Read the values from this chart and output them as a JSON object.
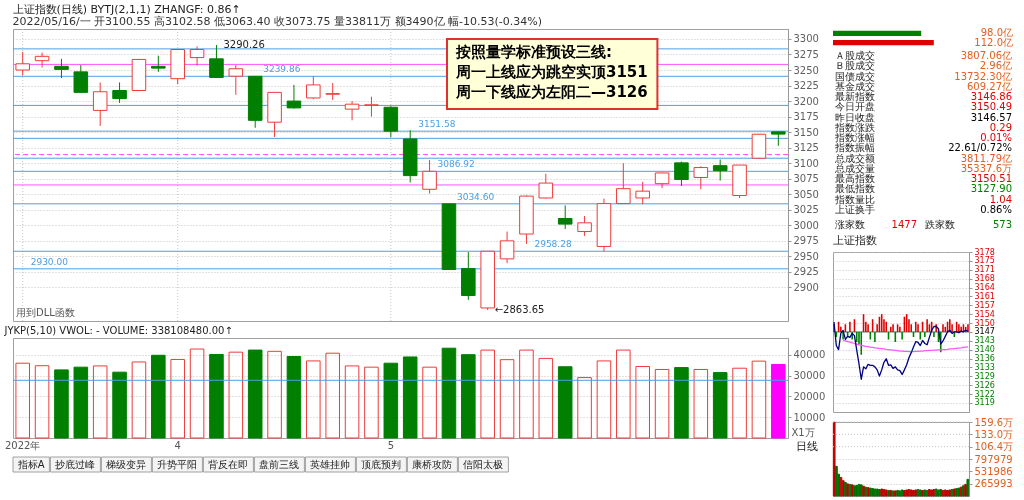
{
  "chart_data": [
    {
      "type": "candlestick",
      "title": "上证指数(日线) BYTJ(2,1,1) ZHANGF: 0.86↑",
      "subtitle": "2022/05/16/一 开3100.55 高3102.58 低3063.40 收3073.75 量33811万 额3490亿 幅-10.53(-0.34%)",
      "categories": [
        null,
        null,
        null,
        null,
        null,
        null,
        null,
        null,
        null,
        null,
        null,
        null,
        null,
        null,
        null,
        null,
        null,
        null,
        null,
        null,
        null,
        null,
        null,
        null,
        null,
        null,
        null,
        null,
        null,
        null,
        null,
        null,
        null,
        null,
        null,
        null,
        null,
        null,
        null,
        null
      ],
      "ohlc": [
        [
          3250,
          3279,
          3241,
          3260
        ],
        [
          3265,
          3278,
          3254,
          3272
        ],
        [
          3256,
          3268,
          3237,
          3251
        ],
        [
          3247,
          3258,
          3213,
          3214
        ],
        [
          3185,
          3230,
          3160,
          3215
        ],
        [
          3217,
          3230,
          3197,
          3204
        ],
        [
          3217,
          3268,
          3217,
          3267
        ],
        [
          3256,
          3273,
          3247,
          3253
        ],
        [
          3236,
          3284,
          3227,
          3283
        ],
        [
          3270,
          3288,
          3257,
          3283
        ],
        [
          3268,
          3290.26,
          3237,
          3238
        ],
        [
          3240,
          3258,
          3210,
          3252
        ],
        [
          3239.86,
          3240,
          3157,
          3169
        ],
        [
          3166,
          3214,
          3142,
          3214
        ],
        [
          3200,
          3226,
          3188,
          3189
        ],
        [
          3205,
          3240,
          3203,
          3226
        ],
        [
          3211,
          3229,
          3202,
          3212
        ],
        [
          3187,
          3200,
          3169,
          3195
        ],
        [
          3193,
          3207,
          3175,
          3194
        ],
        [
          3190,
          3192,
          3142,
          3151.58
        ],
        [
          3139,
          3153,
          3069,
          3080
        ],
        [
          3058,
          3105,
          3051,
          3086.92
        ],
        [
          3034.6,
          3035,
          2929,
          2929
        ],
        [
          2930.4,
          2957,
          2880,
          2887
        ],
        [
          2867,
          2958.28,
          2863.65,
          2958.28
        ],
        [
          2946,
          2990,
          2939,
          2975
        ],
        [
          2986,
          3048,
          2970,
          3047
        ],
        [
          3044,
          3083,
          3043,
          3068
        ],
        [
          3011,
          3032,
          2994,
          3002
        ],
        [
          2990,
          3015,
          2983,
          3004
        ],
        [
          2966,
          3043,
          2958,
          3035
        ],
        [
          3035,
          3100,
          3035,
          3059
        ],
        [
          3044,
          3070,
          3034,
          3055
        ],
        [
          3067,
          3085,
          3060,
          3084.28
        ],
        [
          3100.55,
          3102.58,
          3063.4,
          3073.75
        ],
        [
          3077,
          3095,
          3058,
          3093
        ],
        [
          3096,
          3106,
          3072,
          3088
        ],
        [
          3048,
          3097,
          3044,
          3097
        ],
        [
          3108,
          3147,
          3108,
          3146.57
        ],
        [
          3150.49,
          3150.51,
          3127.9,
          3146.86
        ]
      ],
      "colors": [
        "#ee3b3b",
        "#ee3b3b",
        "#007f00",
        "#007f00",
        "#ee3b3b",
        "#007f00",
        "#ee3b3b",
        "#007f00",
        "#ee3b3b",
        "#ee3b3b",
        "#007f00",
        "#ee3b3b",
        "#007f00",
        "#ee3b3b",
        "#007f00",
        "#ee3b3b",
        "#ee3b3b",
        "#ee3b3b",
        "#ee3b3b",
        "#007f00",
        "#007f00",
        "#ee3b3b",
        "#007f00",
        "#007f00",
        "#ee3b3b",
        "#ee3b3b",
        "#ee3b3b",
        "#ee3b3b",
        "#007f00",
        "#ee3b3b",
        "#ee3b3b",
        "#ee3b3b",
        "#ee3b3b",
        "#ee3b3b",
        "#007f00",
        "#ee3b3b",
        "#007f00",
        "#ee3b3b",
        "#ee3b3b",
        "#007f00"
      ],
      "ylim": [
        2846,
        3316
      ],
      "yticks": [
        2900,
        2925,
        2950,
        2975,
        3000,
        3025,
        3050,
        3075,
        3100,
        3125,
        3150,
        3175,
        3200,
        3225,
        3250,
        3275,
        3300
      ],
      "grid": true,
      "tick_labels": "y",
      "ref_lines": [
        {
          "axis": "y",
          "value": 3284,
          "color": "#4aa0e6"
        },
        {
          "axis": "y",
          "value": 3259,
          "color": "#ff55ff"
        },
        {
          "axis": "y",
          "value": 3239.86,
          "label": "3239.86",
          "color": "#4aa0e6"
        },
        {
          "axis": "y",
          "value": 3193,
          "color": "#4aa0e6"
        },
        {
          "axis": "y",
          "value": 3151.58,
          "label": "3151.58",
          "color": "#4aa0e6"
        },
        {
          "axis": "y",
          "value": 3140,
          "color": "#4aa0e6"
        },
        {
          "axis": "y",
          "value": 3114,
          "color": "#ff55ff",
          "line_style": "dashed"
        },
        {
          "axis": "y",
          "value": 3108,
          "color": "#4aa0e6"
        },
        {
          "axis": "y",
          "value": 3086.92,
          "label": "3086.92",
          "color": "#4aa0e6"
        },
        {
          "axis": "y",
          "value": 3065,
          "color": "#ff55ff"
        },
        {
          "axis": "y",
          "value": 3034.6,
          "label": "3034.60",
          "color": "#4aa0e6"
        },
        {
          "axis": "y",
          "value": 2958.28,
          "label": "2958.28",
          "color": "#4aa0e6"
        },
        {
          "axis": "y",
          "value": 2930.0,
          "label": "2930.00",
          "color": "#4aa0e6"
        }
      ],
      "annotations": [
        "按照量学标准预设三线:\n周一上线应为跳空实顶3151\n周一下线应为左阳二—3126",
        "用到DLL函数",
        {
          "text": "3290.26",
          "y": 3290.26
        },
        "←2863.65"
      ]
    },
    {
      "type": "bar",
      "title": "JYKP(5,10) VWOL: - VOLUME: 338108480.00↑",
      "categories": [
        "2022年",
        null,
        null,
        null,
        null,
        null,
        null,
        null,
        "4",
        null,
        null,
        null,
        null,
        null,
        null,
        null,
        null,
        null,
        null,
        "5",
        null,
        null,
        null,
        null,
        null,
        null,
        null,
        null,
        null,
        null,
        null,
        null,
        null,
        null,
        null,
        null,
        null,
        null,
        null,
        null
      ],
      "values": [
        35900,
        34700,
        32700,
        34000,
        34600,
        31600,
        36500,
        39700,
        37700,
        42700,
        40100,
        41200,
        42200,
        41600,
        39100,
        37000,
        40700,
        34600,
        34000,
        35900,
        38900,
        34000,
        43100,
        40000,
        42200,
        37600,
        42200,
        38200,
        34200,
        29000,
        37000,
        42200,
        34300,
        32900,
        33800,
        32900,
        31400,
        33500,
        36900,
        35300
      ],
      "colors": [
        "#ee3b3b",
        "#ee3b3b",
        "#007f00",
        "#007f00",
        "#ee3b3b",
        "#007f00",
        "#ee3b3b",
        "#007f00",
        "#ee3b3b",
        "#ee3b3b",
        "#007f00",
        "#ee3b3b",
        "#007f00",
        "#ee3b3b",
        "#007f00",
        "#ee3b3b",
        "#ee3b3b",
        "#ee3b3b",
        "#ee3b3b",
        "#007f00",
        "#007f00",
        "#ee3b3b",
        "#007f00",
        "#007f00",
        "#ee3b3b",
        "#ee3b3b",
        "#ee3b3b",
        "#ee3b3b",
        "#007f00",
        "#ee3b3b",
        "#ee3b3b",
        "#ee3b3b",
        "#ee3b3b",
        "#ee3b3b",
        "#007f00",
        "#ee3b3b",
        "#007f00",
        "#ee3b3b",
        "#ee3b3b",
        "#ff00ff"
      ],
      "ylim": [
        0,
        48000
      ],
      "yticks": [
        10000,
        20000,
        30000,
        40000
      ],
      "ylabel": "X1万",
      "grid": "y",
      "ref_lines": [
        {
          "axis": "y",
          "value": 27700,
          "color": "#4aa0e6"
        }
      ],
      "annotations": [
        "日线"
      ]
    },
    {
      "type": "other",
      "annotations": [
        "指标A",
        "抄底过峰",
        "梯级变异",
        "升势平阳",
        "背反在即",
        "盘前三线",
        "英雄挂帅",
        "顶底预判",
        "康桥攻防",
        "信阳太极"
      ]
    },
    {
      "type": "bar",
      "orientation": "horizontal",
      "categories": [
        null,
        null
      ],
      "values": [
        98.0,
        112.0
      ],
      "colors": [
        "#008000",
        "#e00000"
      ],
      "value_labels": [
        "98.0亿",
        "112.0亿"
      ]
    },
    {
      "type": "other",
      "categories": [
        "Ａ股成交",
        "Ｂ股成交",
        "国债成交",
        "基金成交",
        "最新指数",
        "今日开盘",
        "昨日收盘",
        "指数涨跌",
        "指数涨幅",
        "指数振幅",
        "总成交额",
        "总成交量",
        "最高指数",
        "最低指数",
        "指数量比",
        "上证换手"
      ],
      "value_labels": [
        "3807.06亿",
        "2.96亿",
        "13732.30亿",
        "609.27亿",
        "3146.86",
        "3150.49",
        "3146.57",
        "0.29",
        "0.01%",
        "22.61/0.72%",
        "3811.79亿",
        "35337.6万",
        "3150.51",
        "3127.90",
        "1.04",
        "0.86%"
      ],
      "colors": [
        "#e06020",
        "#e06020",
        "#e06020",
        "#e06020",
        "#e00000",
        "#e00000",
        "#000000",
        "#e00000",
        "#e00000",
        "#000000",
        "#e06020",
        "#e06020",
        "#e00000",
        "#008000",
        "#e00000",
        "#000000"
      ]
    },
    {
      "type": "other",
      "categories": [
        "涨家数",
        "跌家数"
      ],
      "value_labels": [
        "1477",
        "573"
      ],
      "colors": [
        "#e00000",
        "#008000"
      ]
    },
    {
      "type": "line",
      "title": "上证指数",
      "categories": [
        null,
        null,
        null,
        null,
        null,
        null,
        null,
        null,
        null,
        null,
        null,
        null,
        null,
        null,
        null,
        null,
        null,
        null,
        null,
        null,
        null,
        null,
        null,
        null,
        null,
        null,
        null,
        null,
        null,
        null,
        null,
        null,
        null,
        null,
        null,
        null,
        null,
        null,
        null,
        null,
        null,
        null,
        null,
        null,
        null,
        null,
        null,
        null,
        null,
        null,
        null,
        null,
        null,
        null,
        null,
        null,
        null,
        null,
        null,
        null
      ],
      "series": [
        {
          "type": "bar",
          "base": [
            3146.57,
            3146.57,
            3146.57,
            3146.57,
            3146.57,
            3146.57,
            3146.57,
            3146.57,
            3146.57,
            3146.57,
            3146.57,
            3146.57,
            3146.57,
            3146.57,
            3146.57,
            3146.57,
            3146.57,
            3146.57,
            3146.57,
            3146.57,
            3146.57,
            3146.57,
            3146.57,
            3146.57,
            3146.57,
            3146.57,
            3146.57,
            3146.57,
            3146.57,
            3146.57,
            3146.57,
            3146.57,
            3146.57,
            3146.57,
            3146.57,
            3146.57,
            3146.57,
            3146.57,
            3146.57,
            3146.57,
            3146.57,
            3146.57,
            3146.57,
            3146.57,
            3146.57,
            3146.57,
            3146.57,
            3146.57,
            3146.57,
            3146.57,
            3146.57,
            3146.57,
            3146.57,
            3146.57,
            3146.57,
            3146.57,
            3146.57,
            3146.57,
            3146.57,
            3146.57
          ],
          "values": [
            3,
            -2,
            4,
            2,
            -3,
            3,
            -2,
            4,
            -3,
            5,
            -4,
            -5,
            -9,
            7,
            4,
            3,
            -3,
            5,
            -4,
            3,
            6,
            7,
            5,
            4,
            -3,
            2,
            3,
            -4,
            3,
            2,
            -3,
            6,
            7,
            5,
            3,
            -2,
            4,
            3,
            -3,
            4,
            -2,
            5,
            3,
            4,
            -2,
            3,
            -4,
            -8,
            3,
            2,
            4,
            5,
            3,
            -2,
            4,
            3,
            2,
            3,
            2,
            3
          ],
          "colors": [
            "#e00000",
            "#008000",
            "#e00000",
            "#e00000",
            "#008000",
            "#e00000",
            "#008000",
            "#e00000",
            "#008000",
            "#e00000",
            "#008000",
            "#008000",
            "#008000",
            "#e00000",
            "#e00000",
            "#e00000",
            "#008000",
            "#e00000",
            "#008000",
            "#e00000",
            "#e00000",
            "#e00000",
            "#e00000",
            "#e00000",
            "#008000",
            "#e00000",
            "#e00000",
            "#008000",
            "#e00000",
            "#e00000",
            "#008000",
            "#e00000",
            "#e00000",
            "#e00000",
            "#e00000",
            "#008000",
            "#e00000",
            "#e00000",
            "#008000",
            "#e00000",
            "#008000",
            "#e00000",
            "#e00000",
            "#e00000",
            "#008000",
            "#e00000",
            "#008000",
            "#008000",
            "#e00000",
            "#e00000",
            "#e00000",
            "#e00000",
            "#e00000",
            "#008000",
            "#e00000",
            "#e00000",
            "#e00000",
            "#e00000",
            "#e00000",
            "#e00000"
          ]
        },
        {
          "color": "#ff55ff",
          "values": [
            null,
            null,
            null,
            null,
            3143.2,
            3143.0,
            3142.7,
            3142.5,
            3142.3,
            3142.0,
            3141.8,
            3141.5,
            3141.3,
            3141.1,
            3140.9,
            3140.8,
            3140.6,
            3140.5,
            3140.3,
            3140.2,
            3140.1,
            3140.0,
            3139.9,
            3139.7,
            3139.6,
            3139.5,
            3139.4,
            3139.3,
            3139.2,
            3139.0,
            3139.0,
            3138.9,
            3138.9,
            3138.8,
            3138.8,
            3138.8,
            3138.9,
            3138.9,
            3139.0,
            3139.0,
            3139.2,
            3139.2,
            3139.3,
            3139.3,
            3139.4,
            3139.4,
            3139.5,
            3139.5,
            3139.6,
            3139.6,
            3139.7,
            3139.9,
            3139.9,
            3140.0,
            3140.1,
            3140.2,
            3140.3,
            3140.5,
            3140.6,
            3140.7
          ]
        },
        {
          "color": "#000080",
          "values": [
            3150.5,
            3141.2,
            3139.6,
            3146.0,
            3147.2,
            3143.6,
            3144.8,
            3144.4,
            3146.0,
            3145.1,
            3139.4,
            3134.0,
            3127.9,
            3132.8,
            3132.0,
            3133.8,
            3133.4,
            3133.4,
            3132.8,
            3131.6,
            3129.2,
            3131.6,
            3134.6,
            3136.0,
            3133.4,
            3133.6,
            3132.2,
            3132.8,
            3131.6,
            3131.3,
            3129.8,
            3131.6,
            3133.6,
            3136.4,
            3138.4,
            3140.6,
            3142.7,
            3142.4,
            3141.2,
            3143.2,
            3142.0,
            3141.5,
            3144.4,
            3147.2,
            3148.7,
            3148.7,
            3147.8,
            3141.8,
            3143.0,
            3144.8,
            3146.6,
            3147.2,
            3146.0,
            3146.6,
            3146.6,
            3146.3,
            3146.9,
            3146.6,
            3147.2,
            3146.9
          ]
        }
      ],
      "ylim": [
        3115.0,
        3178.07
      ],
      "yticks": [
        {
          "value": 3118.57,
          "label": "3119"
        },
        {
          "value": 3122.07,
          "label": "3122"
        },
        {
          "value": 3125.57,
          "label": "3126"
        },
        {
          "value": 3129.07,
          "label": "3129"
        },
        {
          "value": 3132.57,
          "label": "3133"
        },
        {
          "value": 3136.07,
          "label": "3136"
        },
        {
          "value": 3139.57,
          "label": "3140"
        },
        {
          "value": 3143.07,
          "label": "3143"
        },
        {
          "value": 3146.57,
          "label": "3147"
        },
        {
          "value": 3150.07,
          "label": "3150"
        },
        {
          "value": 3153.57,
          "label": "3154"
        },
        {
          "value": 3157.07,
          "label": "3157"
        },
        {
          "value": 3160.57,
          "label": "3161"
        },
        {
          "value": 3164.07,
          "label": "3164"
        },
        {
          "value": 3167.57,
          "label": "3168"
        },
        {
          "value": 3171.07,
          "label": "3171"
        },
        {
          "value": 3174.57,
          "label": "3175"
        },
        {
          "value": 3178.07,
          "label": "3178"
        }
      ],
      "ref_lines": [
        {
          "axis": "y",
          "value": 3146.57,
          "color": "#707070"
        }
      ],
      "grid": "y",
      "tick_labels": "y"
    },
    {
      "type": "bar",
      "categories": [
        null,
        null,
        null,
        null,
        null,
        null,
        null,
        null,
        null,
        null,
        null,
        null,
        null,
        null,
        null,
        null,
        null,
        null,
        null,
        null,
        null,
        null,
        null,
        null,
        null,
        null,
        null,
        null,
        null,
        null,
        null,
        null,
        null,
        null,
        null,
        null,
        null,
        null,
        null,
        null,
        null,
        null,
        null,
        null,
        null,
        null,
        null,
        null,
        null,
        null,
        null,
        null,
        null,
        null,
        null,
        null,
        null,
        null,
        null,
        null
      ],
      "values": [
        1590000,
        640000,
        470000,
        400000,
        330000,
        290000,
        260000,
        250000,
        240000,
        220000,
        230000,
        250000,
        240000,
        210000,
        190000,
        180000,
        170000,
        160000,
        150000,
        150000,
        140000,
        150000,
        140000,
        130000,
        120000,
        120000,
        110000,
        110000,
        120000,
        110000,
        130000,
        120000,
        130000,
        140000,
        130000,
        120000,
        130000,
        140000,
        130000,
        120000,
        130000,
        120000,
        140000,
        130000,
        140000,
        150000,
        130000,
        140000,
        120000,
        130000,
        120000,
        130000,
        140000,
        150000,
        160000,
        170000,
        190000,
        220000,
        250000,
        360000
      ],
      "colors": [
        "#c00000",
        "#007000",
        "#007000",
        "#c00000",
        "#c00000",
        "#007000",
        "#c00000",
        "#007000",
        "#c00000",
        "#007000",
        "#007000",
        "#007000",
        "#007000",
        "#c00000",
        "#007000",
        "#c00000",
        "#007000",
        "#007000",
        "#007000",
        "#007000",
        "#007000",
        "#c00000",
        "#c00000",
        "#c00000",
        "#007000",
        "#c00000",
        "#007000",
        "#c00000",
        "#007000",
        "#007000",
        "#007000",
        "#c00000",
        "#c00000",
        "#c00000",
        "#c00000",
        "#c00000",
        "#c00000",
        "#007000",
        "#007000",
        "#c00000",
        "#007000",
        "#007000",
        "#c00000",
        "#c00000",
        "#c00000",
        "#007000",
        "#007000",
        "#007000",
        "#c00000",
        "#c00000",
        "#c00000",
        "#c00000",
        "#007000",
        "#c00000",
        "#007000",
        "#007000",
        "#c00000",
        "#007000",
        "#c00000",
        "#007000"
      ],
      "ylim": [
        0,
        1596000
      ],
      "yticks": [
        265993,
        531986,
        797979
      ],
      "y2lim": [
        0,
        159.6
      ],
      "y2ticks": [
        {
          "value": 106.4,
          "label": "106.4万"
        },
        {
          "value": 133.0,
          "label": "133.0万"
        },
        {
          "value": 159.6,
          "label": "159.6万"
        }
      ],
      "grid": "y",
      "tick_labels": "y"
    }
  ]
}
